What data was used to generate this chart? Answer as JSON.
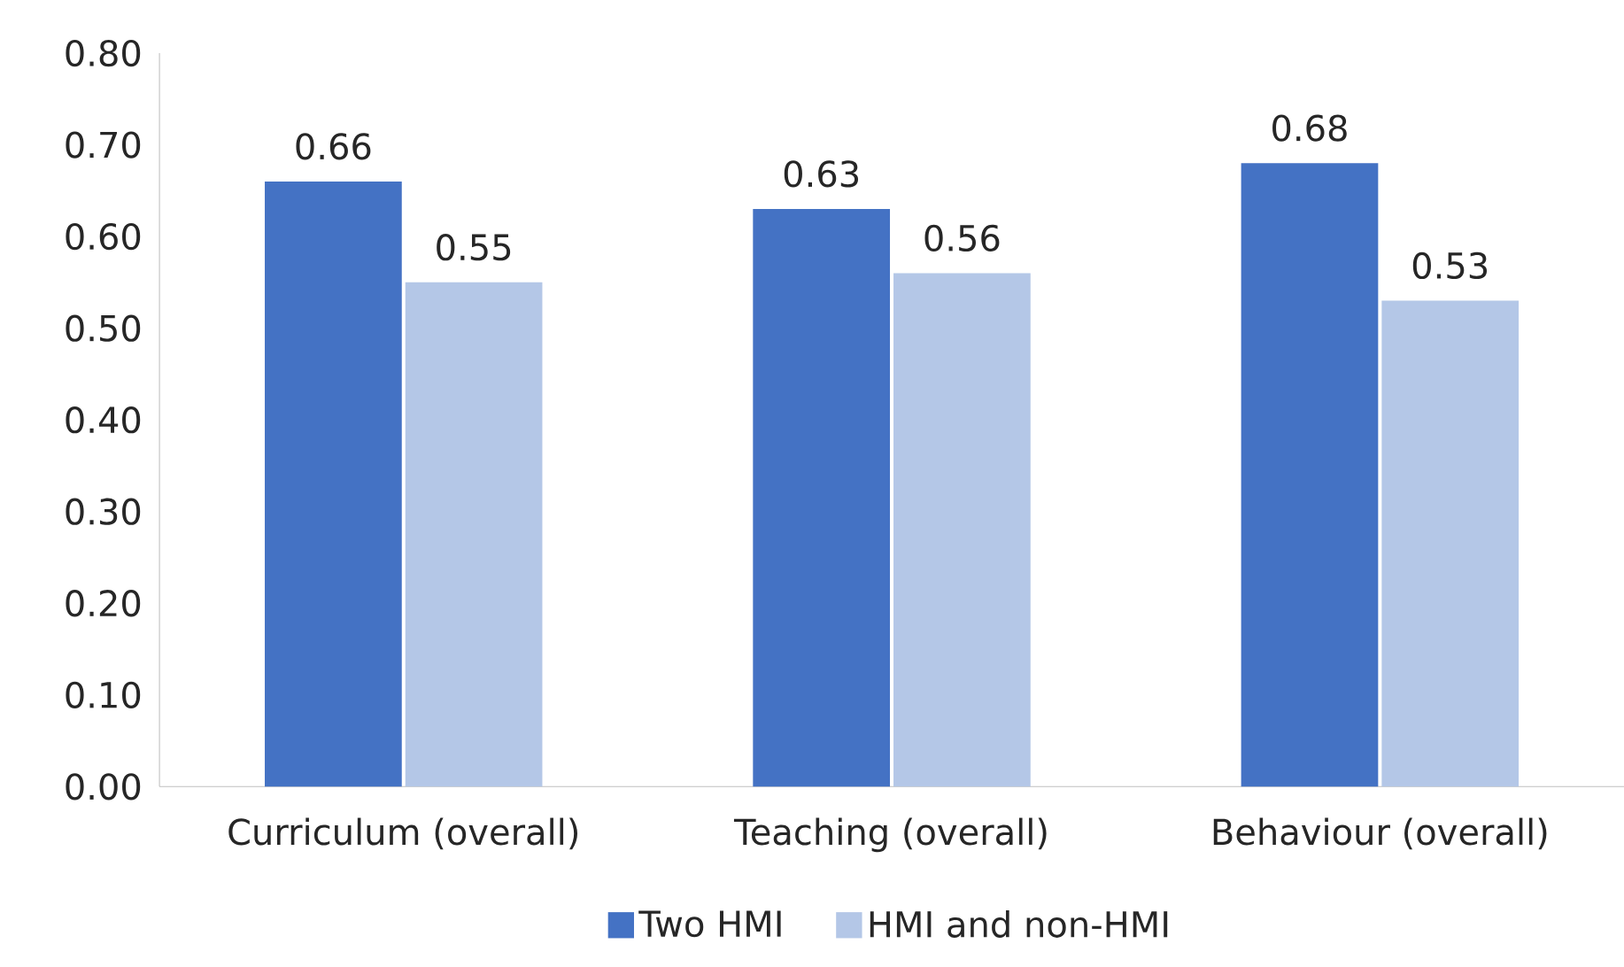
{
  "chart_data": {
    "type": "bar",
    "categories": [
      "Curriculum (overall)",
      "Teaching (overall)",
      "Behaviour (overall)"
    ],
    "series": [
      {
        "name": "Two HMI",
        "color": "#4472c4",
        "values": [
          0.66,
          0.63,
          0.68
        ]
      },
      {
        "name": "HMI and non-HMI",
        "color": "#b4c7e7",
        "values": [
          0.55,
          0.56,
          0.53
        ]
      }
    ],
    "ylim": [
      0,
      0.8
    ],
    "yticks": [
      {
        "value": 0,
        "label": "0.00"
      },
      {
        "value": 0.1,
        "label": "0.10"
      },
      {
        "value": 0.2,
        "label": "0.20"
      },
      {
        "value": 0.3,
        "label": "0.30"
      },
      {
        "value": 0.4,
        "label": "0.40"
      },
      {
        "value": 0.5,
        "label": "0.50"
      },
      {
        "value": 0.6,
        "label": "0.60"
      },
      {
        "value": 0.7,
        "label": "0.70"
      },
      {
        "value": 0.8,
        "label": "0.80"
      }
    ],
    "grid": false,
    "legend": "bottom",
    "data_labels": true
  }
}
